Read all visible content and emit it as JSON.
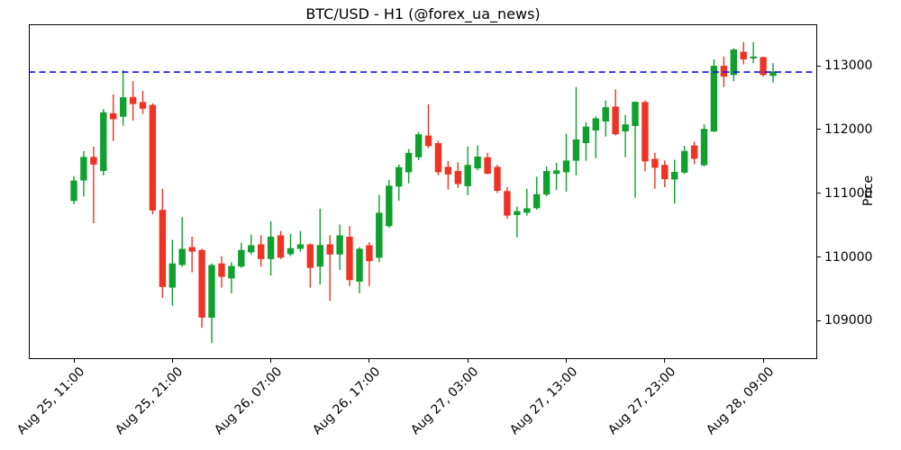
{
  "title": "BTC/USD - H1 (@forex_ua_news)",
  "axes": {
    "y_label": "Price",
    "y_ticks": [
      109000,
      110000,
      111000,
      112000,
      113000
    ],
    "x_ticks": [
      {
        "index": 0,
        "label": "Aug 25, 11:00"
      },
      {
        "index": 10,
        "label": "Aug 25, 21:00"
      },
      {
        "index": 20,
        "label": "Aug 26, 07:00"
      },
      {
        "index": 30,
        "label": "Aug 26, 17:00"
      },
      {
        "index": 40,
        "label": "Aug 27, 03:00"
      },
      {
        "index": 50,
        "label": "Aug 27, 13:00"
      },
      {
        "index": 60,
        "label": "Aug 27, 23:00"
      },
      {
        "index": 70,
        "label": "Aug 28, 09:00"
      }
    ]
  },
  "chart_data": {
    "type": "candlestick",
    "symbol": "BTC/USD",
    "timeframe": "H1",
    "title": "BTC/USD - H1 (@forex_ua_news)",
    "ylabel": "Price",
    "ylim": [
      108400,
      113650
    ],
    "grid": false,
    "start_time": "Aug 25, 11:00",
    "interval_hours": 1,
    "x_tick_indices": [
      0,
      10,
      20,
      30,
      40,
      50,
      60,
      70
    ],
    "x_tick_labels": [
      "Aug 25, 11:00",
      "Aug 25, 21:00",
      "Aug 26, 07:00",
      "Aug 26, 17:00",
      "Aug 27, 03:00",
      "Aug 27, 13:00",
      "Aug 27, 23:00",
      "Aug 28, 09:00"
    ],
    "y_ticks": [
      109000,
      110000,
      111000,
      112000,
      113000
    ],
    "up_color": "#10a02e",
    "down_color": "#f03224",
    "hline": {
      "price": 112900,
      "color": "#1111ee",
      "style": "dashed"
    },
    "ohlc_order": [
      "open",
      "high",
      "low",
      "close"
    ],
    "candles": [
      [
        110880,
        111270,
        110830,
        111200
      ],
      [
        111200,
        111660,
        110950,
        111570
      ],
      [
        111570,
        111730,
        110530,
        111450
      ],
      [
        111350,
        112320,
        111280,
        112270
      ],
      [
        112255,
        112550,
        111820,
        112160
      ],
      [
        112200,
        112930,
        112060,
        112505
      ],
      [
        112510,
        112760,
        112140,
        112400
      ],
      [
        112430,
        112605,
        112245,
        112325
      ],
      [
        112385,
        112410,
        110670,
        110730
      ],
      [
        110740,
        111070,
        109360,
        109530
      ],
      [
        109520,
        110270,
        109240,
        109900
      ],
      [
        109875,
        110625,
        109850,
        110130
      ],
      [
        110155,
        110320,
        109760,
        110085
      ],
      [
        110110,
        110130,
        108890,
        109050
      ],
      [
        109050,
        109900,
        108650,
        109875
      ],
      [
        109900,
        110015,
        109520,
        109690
      ],
      [
        109665,
        109920,
        109430,
        109860
      ],
      [
        109850,
        110225,
        109830,
        110110
      ],
      [
        110075,
        110350,
        110040,
        110185
      ],
      [
        110200,
        110340,
        109850,
        109970
      ],
      [
        109970,
        110560,
        109710,
        110320
      ],
      [
        110340,
        110410,
        109970,
        109990
      ],
      [
        110045,
        110365,
        110015,
        110140
      ],
      [
        110130,
        110410,
        110085,
        110200
      ],
      [
        110200,
        110215,
        109520,
        109830
      ],
      [
        109850,
        110760,
        109570,
        110190
      ],
      [
        110200,
        110340,
        109310,
        110040
      ],
      [
        110040,
        110510,
        109800,
        110340
      ],
      [
        110320,
        110485,
        109545,
        109640
      ],
      [
        109615,
        110155,
        109430,
        110130
      ],
      [
        110185,
        110235,
        109545,
        109935
      ],
      [
        109990,
        110975,
        109920,
        110695
      ],
      [
        110485,
        111210,
        110460,
        111120
      ],
      [
        111105,
        111450,
        110885,
        111410
      ],
      [
        111330,
        111695,
        111155,
        111635
      ],
      [
        111565,
        111960,
        111520,
        111925
      ],
      [
        111905,
        112395,
        111710,
        111740
      ],
      [
        111785,
        111820,
        111285,
        111330
      ],
      [
        111415,
        111505,
        111060,
        111295
      ],
      [
        111350,
        111485,
        111085,
        111145
      ],
      [
        111110,
        111735,
        110970,
        111445
      ],
      [
        111390,
        111750,
        111360,
        111575
      ],
      [
        111565,
        111635,
        111300,
        111305
      ],
      [
        111415,
        111445,
        111005,
        111040
      ],
      [
        111035,
        111095,
        110600,
        110650
      ],
      [
        110660,
        110790,
        110310,
        110720
      ],
      [
        110695,
        111070,
        110650,
        110765
      ],
      [
        110765,
        111260,
        110745,
        110985
      ],
      [
        110980,
        111420,
        110955,
        111350
      ],
      [
        111305,
        111480,
        111050,
        111360
      ],
      [
        111330,
        111935,
        111025,
        111515
      ],
      [
        111510,
        112665,
        111280,
        111845
      ],
      [
        111785,
        112115,
        111510,
        112045
      ],
      [
        111985,
        112205,
        111550,
        112175
      ],
      [
        112125,
        112455,
        111890,
        112350
      ],
      [
        112360,
        112630,
        111905,
        111925
      ],
      [
        111970,
        112230,
        111565,
        112080
      ],
      [
        112055,
        112440,
        110930,
        112435
      ],
      [
        112430,
        112455,
        111345,
        111500
      ],
      [
        111540,
        111635,
        111070,
        111400
      ],
      [
        111445,
        111515,
        111095,
        111220
      ],
      [
        111215,
        111525,
        110840,
        111335
      ],
      [
        111325,
        111745,
        111305,
        111665
      ],
      [
        111750,
        111810,
        111455,
        111540
      ],
      [
        111440,
        112080,
        111420,
        112010
      ],
      [
        111970,
        113100,
        111960,
        113000
      ],
      [
        113000,
        113145,
        112665,
        112830
      ],
      [
        112855,
        113275,
        112760,
        113255
      ],
      [
        113220,
        113370,
        113020,
        113100
      ],
      [
        113115,
        113370,
        113040,
        113145
      ],
      [
        113135,
        113140,
        112830,
        112855
      ],
      [
        112840,
        113040,
        112735,
        112910
      ]
    ]
  }
}
